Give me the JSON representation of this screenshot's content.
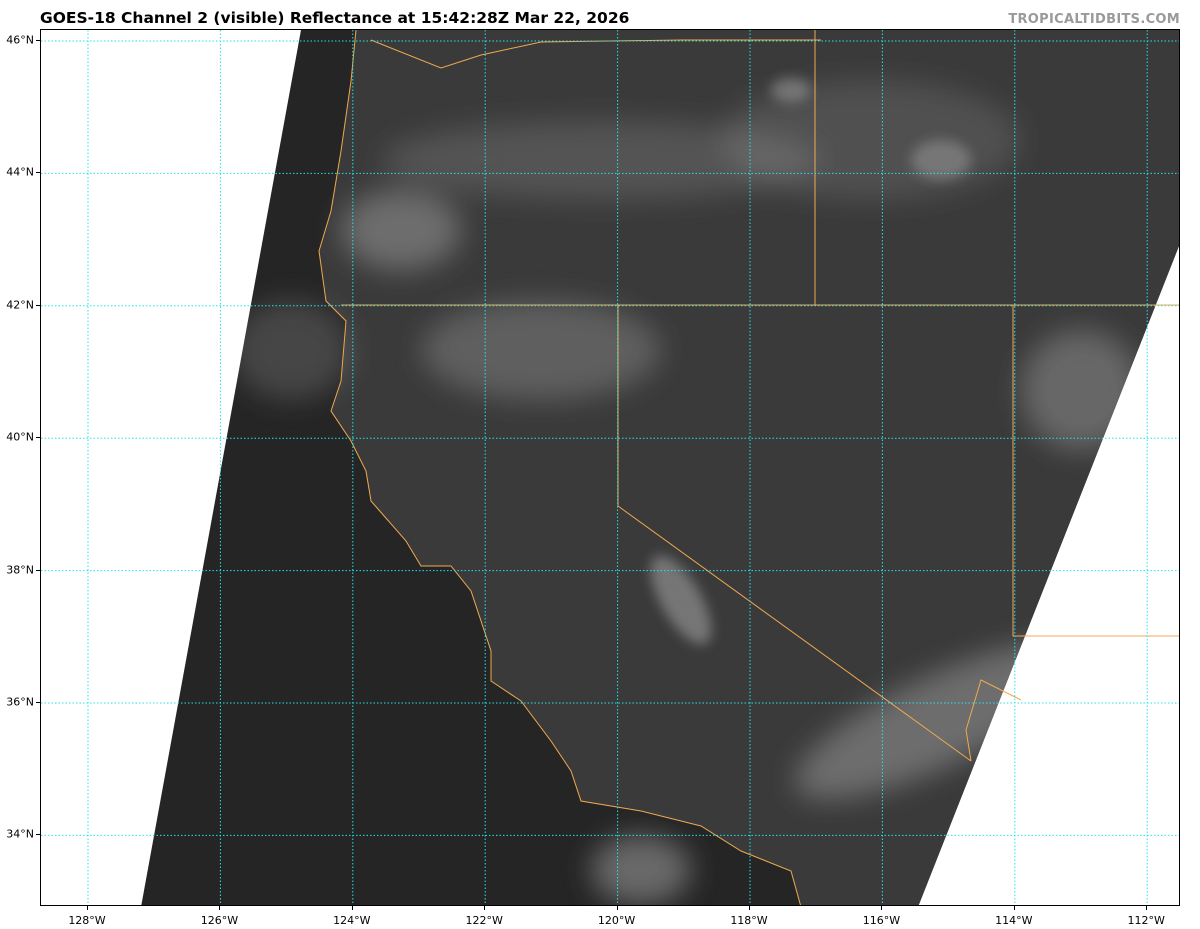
{
  "header": {
    "title": "GOES-18 Channel 2 (visible) Reflectance at 15:42:28Z Mar 22, 2026",
    "watermark": "TROPICALTIDBITS.COM"
  },
  "map": {
    "latitudes": [
      {
        "value": 46,
        "label": "46°N"
      },
      {
        "value": 44,
        "label": "44°N"
      },
      {
        "value": 42,
        "label": "42°N"
      },
      {
        "value": 40,
        "label": "40°N"
      },
      {
        "value": 38,
        "label": "38°N"
      },
      {
        "value": 36,
        "label": "36°N"
      },
      {
        "value": 34,
        "label": "34°N"
      }
    ],
    "longitudes": [
      {
        "value": -128,
        "label": "128°W"
      },
      {
        "value": -126,
        "label": "126°W"
      },
      {
        "value": -124,
        "label": "124°W"
      },
      {
        "value": -122,
        "label": "122°W"
      },
      {
        "value": -120,
        "label": "120°W"
      },
      {
        "value": -118,
        "label": "118°W"
      },
      {
        "value": -116,
        "label": "116°W"
      },
      {
        "value": -114,
        "label": "114°W"
      },
      {
        "value": -112,
        "label": "112°W"
      }
    ],
    "colors": {
      "gridline": "#22e6ee",
      "coastline": "#f0a850",
      "ocean": "#252525",
      "land": "#3a3a3a",
      "cloud": "#cfcfcf",
      "no_data": "#ffffff"
    }
  }
}
